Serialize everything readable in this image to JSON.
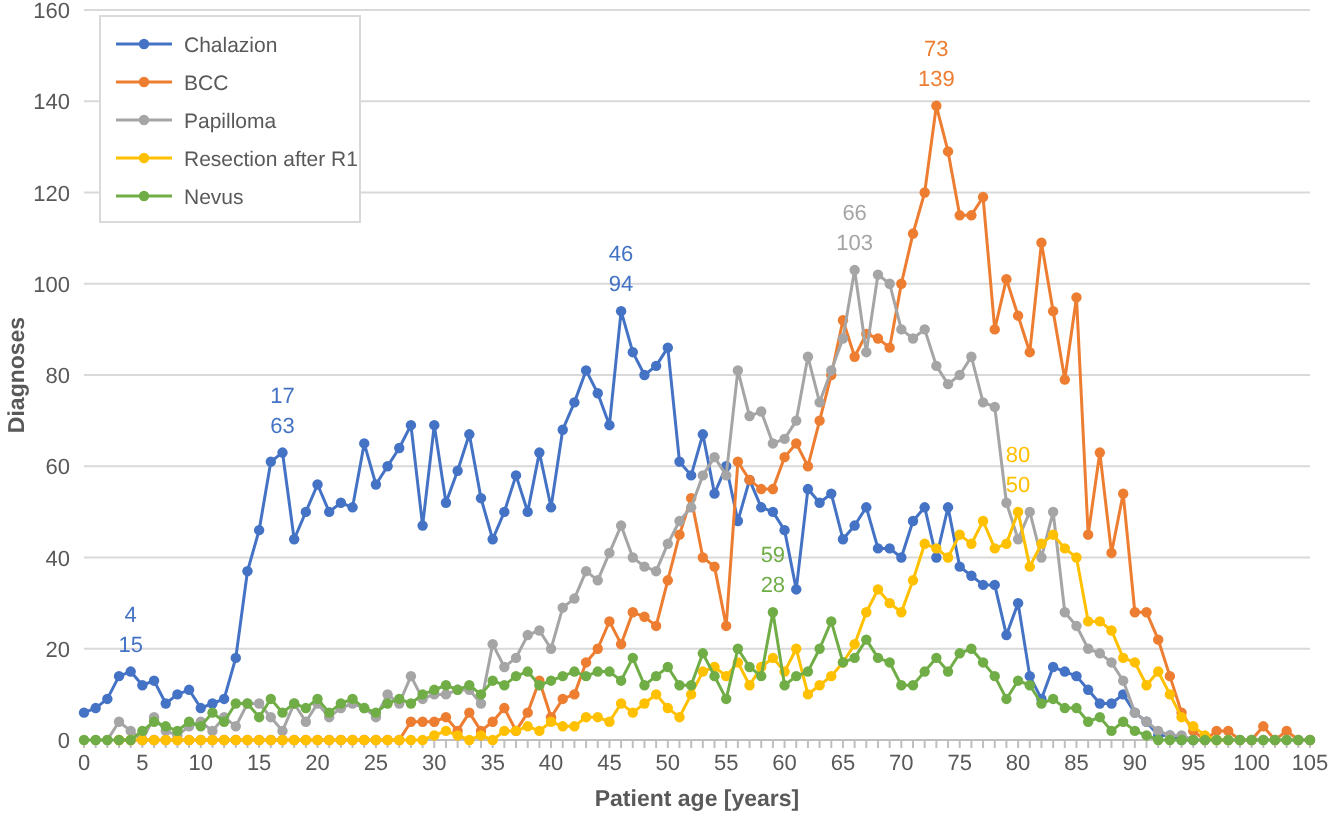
{
  "chart_data": {
    "type": "line",
    "xlabel": "Patient age [years]",
    "ylabel": "Diagnoses",
    "x": [
      0,
      1,
      2,
      3,
      4,
      5,
      6,
      7,
      8,
      9,
      10,
      11,
      12,
      13,
      14,
      15,
      16,
      17,
      18,
      19,
      20,
      21,
      22,
      23,
      24,
      25,
      26,
      27,
      28,
      29,
      30,
      31,
      32,
      33,
      34,
      35,
      36,
      37,
      38,
      39,
      40,
      41,
      42,
      43,
      44,
      45,
      46,
      47,
      48,
      49,
      50,
      51,
      52,
      53,
      54,
      55,
      56,
      57,
      58,
      59,
      60,
      61,
      62,
      63,
      64,
      65,
      66,
      67,
      68,
      69,
      70,
      71,
      72,
      73,
      74,
      75,
      76,
      77,
      78,
      79,
      80,
      81,
      82,
      83,
      84,
      85,
      86,
      87,
      88,
      89,
      90,
      91,
      92,
      93,
      94,
      95,
      96,
      97,
      98,
      99,
      100,
      101,
      102,
      103,
      104,
      105
    ],
    "series": [
      {
        "name": "Chalazion",
        "color": "#4472c4",
        "values": [
          6,
          7,
          9,
          14,
          15,
          12,
          13,
          8,
          10,
          11,
          7,
          8,
          9,
          18,
          37,
          46,
          61,
          63,
          44,
          50,
          56,
          50,
          52,
          51,
          65,
          56,
          60,
          64,
          69,
          47,
          69,
          52,
          59,
          67,
          53,
          44,
          50,
          58,
          50,
          63,
          51,
          68,
          74,
          81,
          76,
          69,
          94,
          85,
          80,
          82,
          86,
          61,
          58,
          67,
          54,
          60,
          48,
          57,
          51,
          50,
          46,
          33,
          55,
          52,
          54,
          44,
          47,
          51,
          42,
          42,
          40,
          48,
          51,
          40,
          51,
          38,
          36,
          34,
          34,
          23,
          30,
          14,
          9,
          16,
          15,
          14,
          11,
          8,
          8,
          10,
          6,
          4,
          1,
          1,
          0,
          0,
          null,
          null,
          null,
          null,
          null,
          null,
          null,
          null,
          null,
          null
        ]
      },
      {
        "name": "BCC",
        "color": "#ed7d31",
        "values": [
          null,
          null,
          null,
          0,
          0,
          0,
          0,
          0,
          0,
          0,
          0,
          0,
          0,
          0,
          0,
          0,
          0,
          0,
          0,
          0,
          0,
          0,
          0,
          0,
          0,
          0,
          0,
          0,
          4,
          4,
          4,
          5,
          2,
          6,
          2,
          4,
          7,
          2,
          6,
          13,
          5,
          9,
          10,
          17,
          20,
          26,
          21,
          28,
          27,
          25,
          35,
          45,
          53,
          40,
          38,
          25,
          61,
          57,
          55,
          55,
          62,
          65,
          60,
          70,
          80,
          92,
          84,
          89,
          88,
          86,
          100,
          111,
          120,
          139,
          129,
          115,
          115,
          119,
          90,
          101,
          93,
          85,
          109,
          94,
          79,
          97,
          45,
          63,
          41,
          54,
          28,
          28,
          22,
          14,
          6,
          2,
          0,
          2,
          2,
          0,
          0,
          3,
          0,
          2,
          0,
          0
        ]
      },
      {
        "name": "Papilloma",
        "color": "#a5a5a5",
        "values": [
          null,
          0,
          0,
          4,
          2,
          0,
          5,
          2,
          1,
          3,
          4,
          2,
          5,
          3,
          8,
          8,
          5,
          2,
          8,
          4,
          8,
          5,
          7,
          8,
          7,
          5,
          10,
          8,
          14,
          9,
          10,
          10,
          11,
          11,
          8,
          21,
          16,
          18,
          23,
          24,
          20,
          29,
          31,
          37,
          35,
          41,
          47,
          40,
          38,
          37,
          43,
          48,
          51,
          58,
          62,
          58,
          81,
          71,
          72,
          65,
          66,
          70,
          84,
          74,
          81,
          88,
          103,
          85,
          102,
          100,
          90,
          88,
          90,
          82,
          78,
          80,
          84,
          74,
          73,
          52,
          44,
          50,
          40,
          50,
          28,
          25,
          20,
          19,
          17,
          13,
          6,
          4,
          2,
          1,
          1,
          0,
          0,
          0,
          0,
          0,
          0,
          0,
          0,
          0,
          0,
          0
        ]
      },
      {
        "name": "Resection after R1",
        "color": "#ffc000",
        "values": [
          null,
          null,
          null,
          0,
          0,
          0,
          0,
          0,
          0,
          0,
          0,
          0,
          0,
          0,
          0,
          0,
          0,
          0,
          0,
          0,
          0,
          0,
          0,
          0,
          0,
          0,
          0,
          0,
          0,
          0,
          1,
          2,
          1,
          0,
          1,
          0,
          2,
          2,
          3,
          2,
          4,
          3,
          3,
          5,
          5,
          4,
          8,
          6,
          8,
          10,
          7,
          5,
          10,
          15,
          16,
          14,
          17,
          12,
          16,
          18,
          15,
          20,
          10,
          12,
          14,
          17,
          21,
          28,
          33,
          30,
          28,
          35,
          43,
          42,
          40,
          45,
          43,
          48,
          42,
          43,
          50,
          38,
          43,
          45,
          42,
          40,
          26,
          26,
          24,
          18,
          17,
          12,
          15,
          10,
          5,
          3,
          1,
          0,
          0,
          null,
          null,
          null,
          null,
          null,
          null,
          null
        ]
      },
      {
        "name": "Nevus",
        "color": "#70ad47",
        "values": [
          0,
          0,
          0,
          0,
          0,
          2,
          4,
          3,
          2,
          4,
          3,
          6,
          4,
          8,
          8,
          5,
          9,
          6,
          8,
          7,
          9,
          6,
          8,
          9,
          7,
          6,
          8,
          9,
          8,
          10,
          11,
          12,
          11,
          12,
          10,
          13,
          12,
          14,
          15,
          12,
          13,
          14,
          15,
          14,
          15,
          15,
          13,
          18,
          12,
          14,
          16,
          12,
          12,
          19,
          14,
          9,
          20,
          16,
          14,
          28,
          12,
          14,
          15,
          20,
          26,
          17,
          18,
          22,
          18,
          17,
          12,
          12,
          15,
          18,
          15,
          19,
          20,
          17,
          14,
          9,
          13,
          12,
          8,
          9,
          7,
          7,
          4,
          5,
          2,
          4,
          2,
          1,
          0,
          0,
          0,
          0,
          0,
          0,
          0,
          0,
          0,
          0,
          0,
          0,
          0,
          0
        ]
      }
    ],
    "annotations": [
      {
        "text": "4\n15",
        "x": 4,
        "y": 15
      },
      {
        "text": "17\n63",
        "x": 17,
        "y": 63
      },
      {
        "text": "46\n94",
        "x": 46,
        "y": 94
      },
      {
        "text": "59\n28",
        "x": 59,
        "y": 28
      },
      {
        "text": "66\n103",
        "x": 66,
        "y": 103
      },
      {
        "text": "73\n139",
        "x": 73,
        "y": 139
      },
      {
        "text": "80\n50",
        "x": 80,
        "y": 50
      }
    ],
    "xlim": [
      0,
      105
    ],
    "xticks": [
      0,
      5,
      10,
      15,
      20,
      25,
      30,
      35,
      40,
      45,
      50,
      55,
      60,
      65,
      70,
      75,
      80,
      85,
      90,
      95,
      100,
      105
    ],
    "ylim": [
      0,
      160
    ],
    "yticks": [
      0,
      20,
      40,
      60,
      80,
      100,
      120,
      140,
      160
    ],
    "grid": "y",
    "legend": "top left",
    "marker": "circle",
    "line_style": "solid"
  }
}
